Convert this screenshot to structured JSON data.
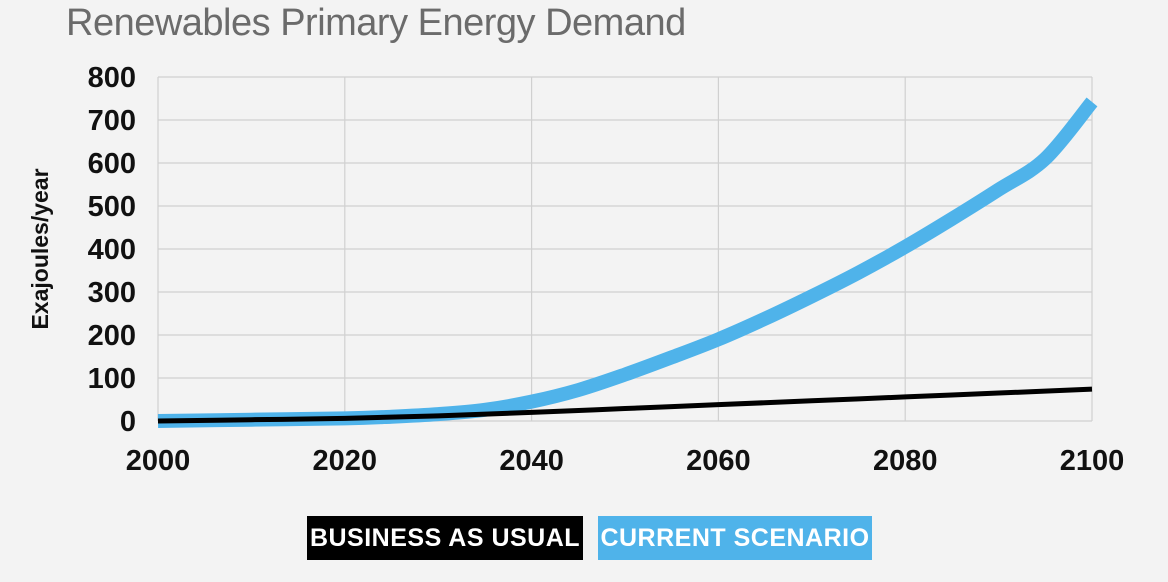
{
  "chart_data": {
    "type": "line",
    "title": "Renewables Primary Energy Demand",
    "ylabel": "Exajoules/year",
    "xlabel": "",
    "xlim": [
      2000,
      2100
    ],
    "ylim": [
      0,
      800
    ],
    "xticks": [
      2000,
      2020,
      2040,
      2060,
      2080,
      2100
    ],
    "yticks": [
      0,
      100,
      200,
      300,
      400,
      500,
      600,
      700,
      800
    ],
    "grid": true,
    "legend_position": "bottom",
    "series": [
      {
        "name": "BUSINESS AS USUAL",
        "color": "#000000",
        "x": [
          2000,
          2010,
          2020,
          2030,
          2040,
          2050,
          2060,
          2070,
          2080,
          2090,
          2100
        ],
        "y": [
          0,
          3,
          6,
          12,
          20,
          29,
          38,
          47,
          56,
          65,
          74
        ]
      },
      {
        "name": "CURRENT SCENARIO",
        "color": "#4fb3ea",
        "x": [
          2000,
          2010,
          2020,
          2025,
          2030,
          2035,
          2040,
          2045,
          2050,
          2055,
          2060,
          2065,
          2070,
          2075,
          2080,
          2085,
          2090,
          2095,
          2100
        ],
        "y": [
          0,
          3,
          6,
          10,
          16,
          26,
          45,
          72,
          108,
          148,
          190,
          238,
          290,
          345,
          405,
          470,
          538,
          610,
          742
        ]
      }
    ]
  }
}
